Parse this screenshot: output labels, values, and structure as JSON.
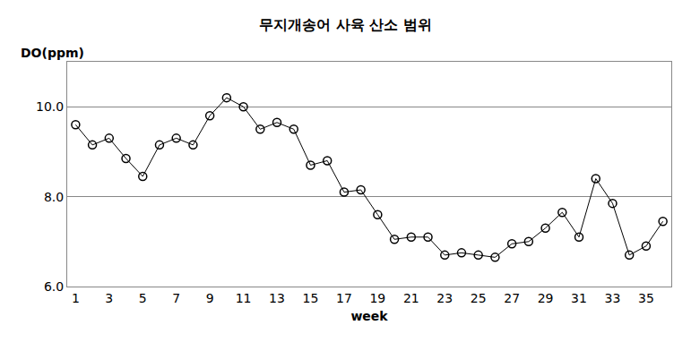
{
  "chart_data": {
    "type": "line",
    "title": "무지개송어 사육 산소 범위",
    "ylabel": "DO(ppm)",
    "xlabel": "week",
    "x": [
      1,
      2,
      3,
      4,
      5,
      6,
      7,
      8,
      9,
      10,
      11,
      12,
      13,
      14,
      15,
      16,
      17,
      18,
      19,
      20,
      21,
      22,
      23,
      24,
      25,
      26,
      27,
      28,
      29,
      30,
      31,
      32,
      33,
      34,
      35,
      36
    ],
    "values": [
      9.6,
      9.15,
      9.3,
      8.85,
      8.45,
      9.15,
      9.3,
      9.15,
      9.8,
      10.2,
      10.0,
      9.5,
      9.65,
      9.5,
      8.7,
      8.8,
      8.1,
      8.15,
      7.6,
      7.05,
      7.1,
      7.1,
      6.7,
      6.75,
      6.7,
      6.65,
      6.95,
      7.0,
      7.3,
      7.65,
      7.1,
      8.4,
      7.85,
      6.7,
      6.9,
      7.45
    ],
    "color": "#000000",
    "marker": "circle-open",
    "line_style": "solid",
    "xlim": [
      0.5,
      36.5
    ],
    "xticks": [
      1,
      3,
      5,
      7,
      9,
      11,
      13,
      15,
      17,
      19,
      21,
      23,
      25,
      27,
      29,
      31,
      33,
      35
    ],
    "ylim": [
      6,
      11
    ],
    "yticks": [
      {
        "value": 6,
        "label": "6.0"
      },
      {
        "value": 8,
        "label": "8.0"
      },
      {
        "value": 10,
        "label": "10.0"
      }
    ],
    "grid": true
  }
}
